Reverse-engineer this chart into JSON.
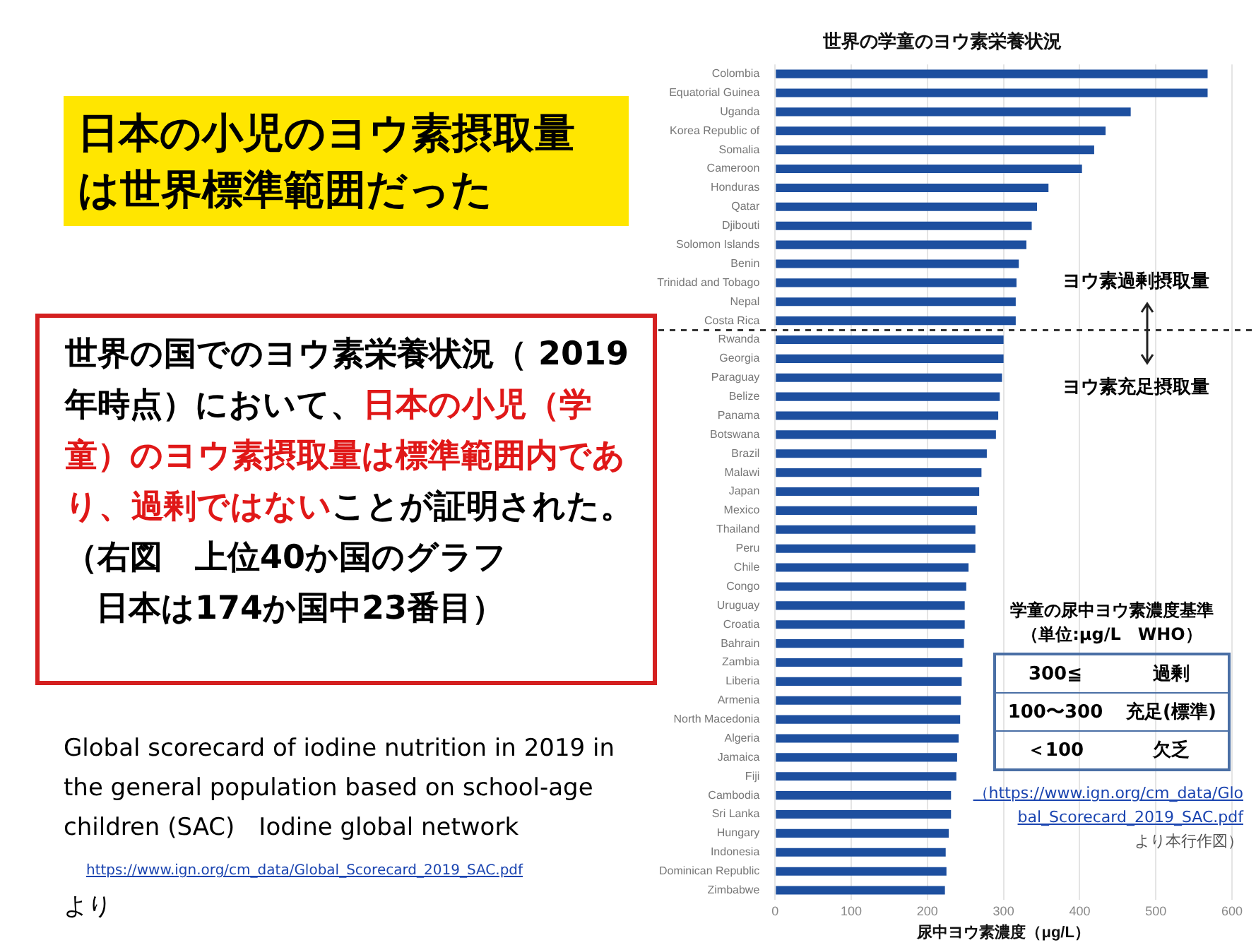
{
  "chart_data": {
    "type": "bar",
    "orientation": "horizontal",
    "title": "世界の学童のヨウ素栄養状況",
    "xlabel": "尿中ヨウ素濃度（μg/L）",
    "categories": [
      "Colombia",
      "Equatorial Guinea",
      "Uganda",
      "Korea Republic of",
      "Somalia",
      "Cameroon",
      "Honduras",
      "Qatar",
      "Djibouti",
      "Solomon Islands",
      "Benin",
      "Trinidad and Tobago",
      "Nepal",
      "Costa Rica",
      "Rwanda",
      "Georgia",
      "Paraguay",
      "Belize",
      "Panama",
      "Botswana",
      "Brazil",
      "Malawi",
      "Japan",
      "Mexico",
      "Thailand",
      "Peru",
      "Chile",
      "Congo",
      "Uruguay",
      "Croatia",
      "Bahrain",
      "Zambia",
      "Liberia",
      "Armenia",
      "North Macedonia",
      "Algeria",
      "Jamaica",
      "Fiji",
      "Cambodia",
      "Sri Lanka",
      "Hungary",
      "Indonesia",
      "Dominican Republic",
      "Zimbabwe"
    ],
    "values": [
      568,
      568,
      467,
      434,
      419,
      403,
      359,
      344,
      337,
      330,
      320,
      317,
      316,
      316,
      300,
      300,
      298,
      295,
      293,
      290,
      278,
      271,
      268,
      265,
      263,
      263,
      254,
      251,
      249,
      249,
      248,
      246,
      245,
      244,
      243,
      241,
      239,
      238,
      231,
      231,
      228,
      224,
      225,
      223
    ],
    "color": "#1d4f9f",
    "xlim": [
      0,
      600
    ],
    "xticks": [
      0,
      100,
      200,
      300,
      400,
      500,
      600
    ],
    "grid": "x",
    "ref_lines": [
      {
        "axis": "y",
        "value": "Rwanda",
        "line_style": "dashed",
        "color": "#333333"
      }
    ],
    "annotations": [
      "日本の小児のヨウ素摂取量は世界標準範囲だった",
      "世界の国でのヨウ素栄養状況（ 2019 年時点）において、",
      "日本の小児（学童）のヨウ素摂取量は標準範囲内であり、過剰ではない",
      "ことが証明された。",
      "（右図　上位40か国のグラフ",
      "日本は174か国中23番目）",
      "Global scorecard of iodine nutrition in 2019 in the general population based on school-age children (SAC)　Iodine global network",
      "https://www.ign.org/cm_data/Global_Scorecard_2019_SAC.pdf",
      "より",
      "ヨウ素過剰摂取量",
      "ヨウ素充足摂取量",
      "学童の尿中ヨウ素濃度基準",
      "（単位:μg/L　WHO）",
      "300≦",
      "過剰",
      "100〜300",
      "充足(標準)",
      "＜100",
      "欠乏",
      "（https://www.ign.org/cm_data/Global_Scorecard_2019_SAC.pdf",
      "より本行作図）"
    ]
  }
}
